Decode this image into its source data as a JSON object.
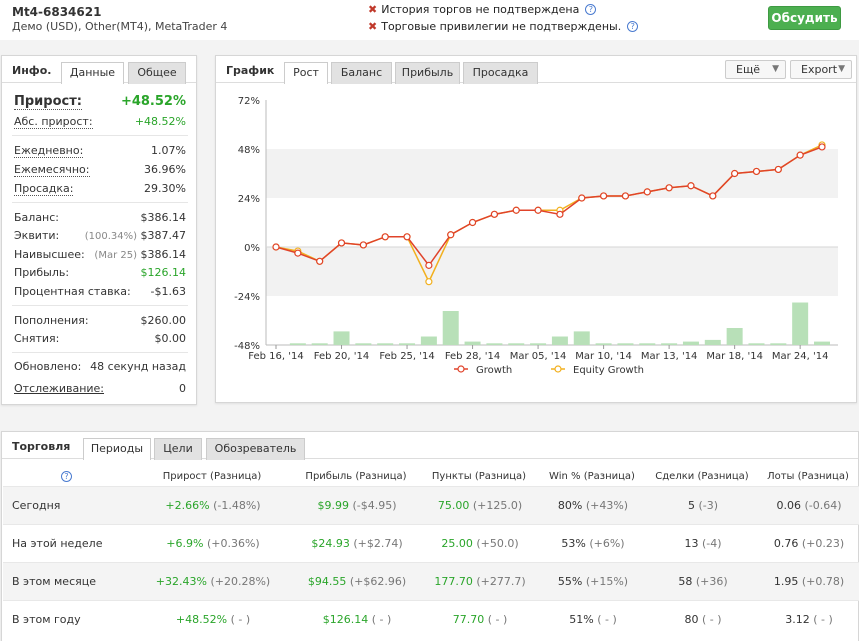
{
  "header": {
    "account_title": "Mt4-6834621",
    "account_sub": "Демо (USD), Other(MT4), MetaTrader 4",
    "warnings": [
      "История торгов не подтверждена",
      "Торговые привилегии не подтверждены."
    ],
    "help_glyph": "?",
    "discuss_label": "Обсудить"
  },
  "info": {
    "title": "Инфо.",
    "tabs": [
      "Данные",
      "Общее"
    ],
    "gain_label": "Прирост:",
    "gain_value": "+48.52%",
    "abs_gain_label": "Абс. прирост:",
    "abs_gain_value": "+48.52%",
    "daily_label": "Ежедневно:",
    "daily_value": "1.07%",
    "monthly_label": "Ежемесячно:",
    "monthly_value": "36.96%",
    "drawdown_label": "Просадка:",
    "drawdown_value": "29.30%",
    "balance_label": "Баланс:",
    "balance_value": "$386.14",
    "equity_label": "Эквити:",
    "equity_pct": "(100.34%)",
    "equity_value": "$387.47",
    "highest_label": "Наивысшее:",
    "highest_date": "(Mar 25)",
    "highest_value": "$386.14",
    "profit_label": "Прибыль:",
    "profit_value": "$126.14",
    "interest_label": "Процентная ставка:",
    "interest_value": "-$1.63",
    "deposits_label": "Пополнения:",
    "deposits_value": "$260.00",
    "withdrawals_label": "Снятия:",
    "withdrawals_value": "$0.00",
    "updated_label": "Обновлено:",
    "updated_value": "48 секунд назад",
    "tracking_label": "Отслеживание:",
    "tracking_value": "0"
  },
  "graph": {
    "title": "График",
    "tabs": [
      "Рост",
      "Баланс",
      "Прибыль",
      "Просадка"
    ],
    "more_label": "Ещё",
    "export_label": "Export"
  },
  "chart_data": {
    "type": "line",
    "y_ticks": [
      "72%",
      "48%",
      "24%",
      "0%",
      "-24%",
      "-48%"
    ],
    "x_ticks": [
      "Feb 16, '14",
      "Feb 20, '14",
      "Feb 25, '14",
      "Feb 28, '14",
      "Mar 05, '14",
      "Mar 10, '14",
      "Mar 13, '14",
      "Mar 18, '14",
      "Mar 24, '14"
    ],
    "ylim": [
      -48,
      72
    ],
    "series": [
      {
        "name": "Growth",
        "color": "#e0432a",
        "values": [
          0,
          -3,
          -7,
          2,
          1,
          5,
          5,
          -9,
          6,
          12,
          16,
          18,
          18,
          16,
          24,
          25,
          25,
          27,
          29,
          30,
          25,
          36,
          37,
          38,
          45,
          49
        ]
      },
      {
        "name": "Equity Growth",
        "color": "#f2b01e",
        "values": [
          0,
          -2,
          -7,
          2,
          1,
          5,
          5,
          -17,
          6,
          12,
          16,
          18,
          18,
          18,
          24,
          25,
          25,
          27,
          29,
          30,
          25,
          36,
          37,
          38,
          45,
          50
        ]
      }
    ],
    "bars": [
      0,
      1,
      1,
      8,
      1,
      1,
      1,
      5,
      20,
      2,
      1,
      1,
      1,
      5,
      8,
      1,
      1,
      1,
      1,
      2,
      3,
      10,
      1,
      1,
      25,
      2
    ]
  },
  "trading": {
    "title": "Торговля",
    "tabs": [
      "Периоды",
      "Цели",
      "Обозреватель"
    ],
    "columns": [
      "Прирост (Разница)",
      "Прибыль (Разница)",
      "Пункты (Разница)",
      "Win % (Разница)",
      "Сделки (Разница)",
      "Лоты (Разница)"
    ],
    "rows": [
      {
        "label": "Сегодня",
        "gain": "+2.66%",
        "gain_d": "(-1.48%)",
        "profit": "$9.99",
        "profit_d": "(-$4.95)",
        "pips": "75.00",
        "pips_d": "(+125.0)",
        "win": "80%",
        "win_d": "(+43%)",
        "trades": "5",
        "trades_d": "(-3)",
        "lots": "0.06",
        "lots_d": "(-0.64)"
      },
      {
        "label": "На этой неделе",
        "gain": "+6.9%",
        "gain_d": "(+0.36%)",
        "profit": "$24.93",
        "profit_d": "(+$2.74)",
        "pips": "25.00",
        "pips_d": "(+50.0)",
        "win": "53%",
        "win_d": "(+6%)",
        "trades": "13",
        "trades_d": "(-4)",
        "lots": "0.76",
        "lots_d": "(+0.23)"
      },
      {
        "label": "В этом месяце",
        "gain": "+32.43%",
        "gain_d": "(+20.28%)",
        "profit": "$94.55",
        "profit_d": "(+$62.96)",
        "pips": "177.70",
        "pips_d": "(+277.7)",
        "win": "55%",
        "win_d": "(+15%)",
        "trades": "58",
        "trades_d": "(+36)",
        "lots": "1.95",
        "lots_d": "(+0.78)"
      },
      {
        "label": "В этом году",
        "gain": "+48.52%",
        "gain_d": "( - )",
        "profit": "$126.14",
        "profit_d": "( - )",
        "pips": "77.70",
        "pips_d": "( - )",
        "win": "51%",
        "win_d": "( - )",
        "trades": "80",
        "trades_d": "( - )",
        "lots": "3.12",
        "lots_d": "( - )"
      }
    ]
  }
}
